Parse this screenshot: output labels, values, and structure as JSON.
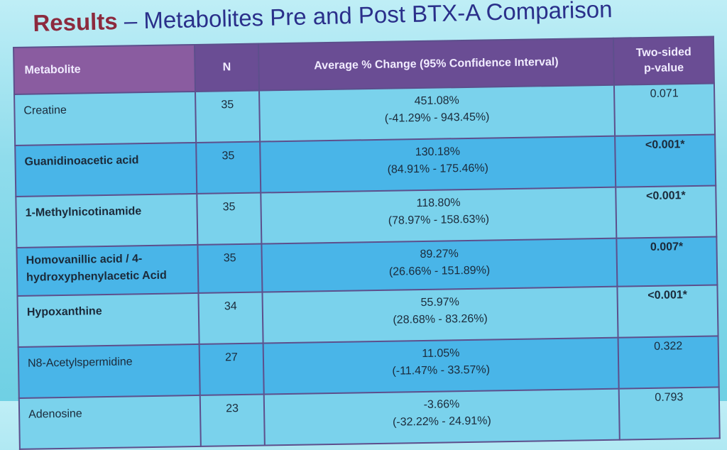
{
  "title": {
    "bold": "Results",
    "rest": " – Metabolites Pre and Post BTX-A Comparison"
  },
  "table": {
    "headers": {
      "metabolite": "Metabolite",
      "n": "N",
      "avg": "Average % Change (95% Confidence Interval)",
      "p_line1": "Two-sided",
      "p_line2": "p-value"
    },
    "rows": [
      {
        "name": "Creatine",
        "n": "35",
        "pct": "451.08%",
        "ci": "(-41.29% - 943.45%)",
        "p": "0.071"
      },
      {
        "name": "Guanidinoacetic acid",
        "n": "35",
        "pct": "130.18%",
        "ci": "(84.91% - 175.46%)",
        "p": "<0.001*"
      },
      {
        "name": "1-Methylnicotinamide",
        "n": "35",
        "pct": "118.80%",
        "ci": "(78.97% - 158.63%)",
        "p": "<0.001*"
      },
      {
        "name_line1": "Homovanillic acid / 4-",
        "name_line2": "hydroxyphenylacetic Acid",
        "n": "35",
        "pct": "89.27%",
        "ci": "(26.66% - 151.89%)",
        "p": "0.007*"
      },
      {
        "name": "Hypoxanthine",
        "n": "34",
        "pct": "55.97%",
        "ci": "(28.68% - 83.26%)",
        "p": "<0.001*"
      },
      {
        "name": "N8-Acetylspermidine",
        "n": "27",
        "pct": "11.05%",
        "ci": "(-11.47% - 33.57%)",
        "p": "0.322"
      },
      {
        "name": "Adenosine",
        "n": "23",
        "pct": "-3.66%",
        "ci": "(-32.22% - 24.91%)",
        "p": "0.793"
      }
    ]
  }
}
